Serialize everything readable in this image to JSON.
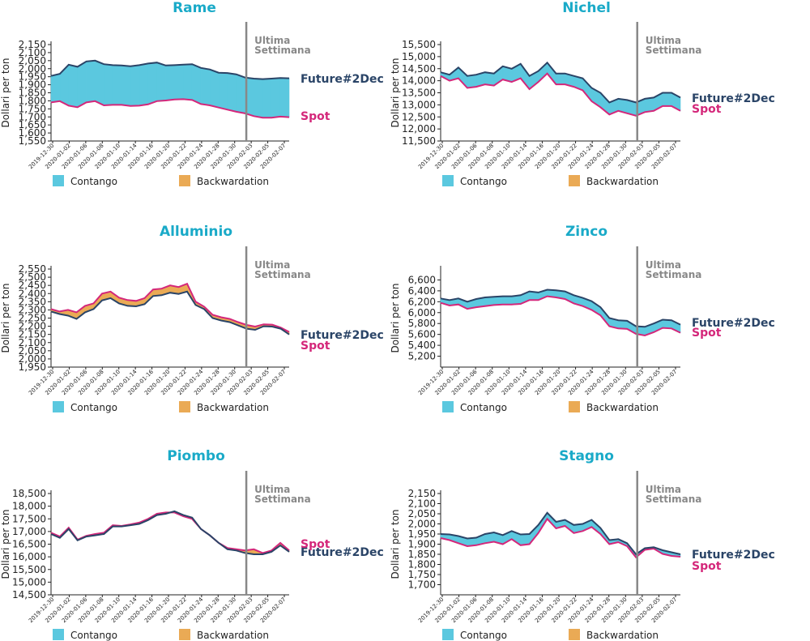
{
  "colors": {
    "contango": "#5bc8df",
    "backwardation": "#eaaa55",
    "future_line": "#2a4467",
    "spot_line": "#d4277a",
    "title": "#1aaac8",
    "week_marker": "#888888"
  },
  "shared": {
    "ylabel": "Dollari per ton",
    "week_marker_label": [
      "Ultima",
      "Settimana"
    ],
    "future_label": "Future#2Dec",
    "spot_label": "Spot",
    "legend": [
      {
        "key": "contango",
        "label": "Contango"
      },
      {
        "key": "backwardation",
        "label": "Backwardation"
      }
    ],
    "x_ticks": [
      "2019-12-30",
      "2020-01-02",
      "2020-01-06",
      "2020-01-08",
      "2020-01-10",
      "2020-01-14",
      "2020-01-16",
      "2020-01-20",
      "2020-01-22",
      "2020-01-24",
      "2020-01-28",
      "2020-01-30",
      "2020-02-03",
      "2020-02-05",
      "2020-02-07"
    ],
    "week_marker_at": "2020-01-31"
  },
  "chart_data": [
    {
      "type": "area",
      "title": "Rame",
      "ylabel": "Dollari per ton",
      "ylim": [
        1550,
        2150
      ],
      "yticks": [
        1550,
        1600,
        1650,
        1700,
        1750,
        1800,
        1850,
        1900,
        1950,
        2000,
        2050,
        2100,
        2150
      ],
      "future": [
        1955,
        1968,
        2025,
        2012,
        2045,
        2050,
        2028,
        2022,
        2020,
        2015,
        2022,
        2032,
        2038,
        2020,
        2022,
        2025,
        2028,
        2005,
        1995,
        1975,
        1973,
        1965,
        1945,
        1938,
        1935,
        1938,
        1942,
        1940
      ],
      "spot": [
        1790,
        1798,
        1770,
        1760,
        1790,
        1798,
        1772,
        1775,
        1775,
        1768,
        1770,
        1778,
        1798,
        1802,
        1808,
        1810,
        1805,
        1780,
        1772,
        1758,
        1745,
        1732,
        1722,
        1705,
        1695,
        1695,
        1702,
        1698
      ]
    },
    {
      "type": "area",
      "title": "Nichel",
      "ylabel": "Dollari per ton",
      "ylim": [
        11500,
        15500
      ],
      "yticks": [
        11500,
        12000,
        12500,
        13000,
        13500,
        14000,
        14500,
        15000,
        15500
      ],
      "future": [
        14350,
        14250,
        14550,
        14200,
        14250,
        14350,
        14300,
        14600,
        14500,
        14700,
        14200,
        14400,
        14750,
        14300,
        14300,
        14200,
        14100,
        13700,
        13500,
        13100,
        13250,
        13200,
        13100,
        13250,
        13300,
        13500,
        13500,
        13300
      ],
      "spot": [
        14200,
        14000,
        14100,
        13700,
        13750,
        13850,
        13800,
        14050,
        13950,
        14100,
        13650,
        13950,
        14300,
        13850,
        13850,
        13750,
        13600,
        13150,
        12900,
        12600,
        12750,
        12650,
        12550,
        12700,
        12750,
        12950,
        12950,
        12750
      ]
    },
    {
      "type": "area",
      "title": "Alluminio",
      "ylabel": "Dollari per ton",
      "ylim": [
        1950,
        2550
      ],
      "yticks": [
        1950,
        2000,
        2050,
        2100,
        2150,
        2200,
        2250,
        2300,
        2350,
        2400,
        2450,
        2500,
        2550
      ],
      "future": [
        2290,
        2275,
        2265,
        2245,
        2285,
        2305,
        2358,
        2372,
        2340,
        2325,
        2322,
        2335,
        2385,
        2390,
        2405,
        2398,
        2412,
        2330,
        2305,
        2250,
        2235,
        2225,
        2205,
        2185,
        2178,
        2200,
        2198,
        2185,
        2150
      ],
      "spot": [
        2305,
        2290,
        2300,
        2285,
        2325,
        2340,
        2400,
        2412,
        2375,
        2360,
        2355,
        2372,
        2425,
        2430,
        2450,
        2440,
        2460,
        2350,
        2320,
        2270,
        2255,
        2245,
        2225,
        2208,
        2198,
        2212,
        2210,
        2192,
        2165
      ]
    },
    {
      "type": "area",
      "title": "Zinco",
      "ylabel": "Dollari per ton",
      "ylim": [
        5000,
        6800
      ],
      "yticks": [
        5200,
        5400,
        5600,
        5800,
        6000,
        6200,
        6400,
        6600
      ],
      "future": [
        6260,
        6230,
        6260,
        6200,
        6250,
        6280,
        6290,
        6300,
        6300,
        6320,
        6390,
        6370,
        6420,
        6410,
        6390,
        6320,
        6270,
        6210,
        6100,
        5900,
        5860,
        5850,
        5750,
        5740,
        5800,
        5870,
        5860,
        5780
      ],
      "spot": [
        6180,
        6130,
        6150,
        6070,
        6100,
        6120,
        6140,
        6150,
        6150,
        6160,
        6230,
        6230,
        6300,
        6280,
        6250,
        6170,
        6120,
        6050,
        5950,
        5750,
        5710,
        5700,
        5610,
        5580,
        5640,
        5720,
        5710,
        5630
      ]
    },
    {
      "type": "area",
      "title": "Piombo",
      "ylabel": "Dollari per ton",
      "ylim": [
        14500,
        18500
      ],
      "yticks": [
        14500,
        15000,
        15500,
        16000,
        16500,
        17000,
        17500,
        18000,
        18500
      ],
      "future": [
        16900,
        16750,
        17100,
        16650,
        16800,
        16850,
        16900,
        17200,
        17200,
        17250,
        17300,
        17450,
        17650,
        17700,
        17800,
        17650,
        17550,
        17100,
        16850,
        16550,
        16300,
        16250,
        16150,
        16100,
        16100,
        16200,
        16450,
        16200
      ],
      "spot": [
        16950,
        16800,
        17150,
        16680,
        16830,
        16900,
        16950,
        17250,
        17220,
        17280,
        17350,
        17500,
        17700,
        17750,
        17750,
        17600,
        17500,
        17100,
        16850,
        16550,
        16350,
        16300,
        16250,
        16300,
        16150,
        16250,
        16550,
        16250
      ]
    },
    {
      "type": "area",
      "title": "Stagno",
      "ylabel": "Dollari per ton",
      "ylim": [
        1650,
        2150
      ],
      "yticks": [
        1700,
        1750,
        1800,
        1850,
        1900,
        1950,
        2000,
        2050,
        2100,
        2150
      ],
      "future": [
        1950,
        1948,
        1940,
        1928,
        1932,
        1950,
        1958,
        1945,
        1965,
        1948,
        1950,
        1995,
        2055,
        2010,
        2020,
        1995,
        2000,
        2020,
        1980,
        1920,
        1925,
        1905,
        1850,
        1880,
        1885,
        1870,
        1860,
        1850
      ],
      "spot": [
        1930,
        1920,
        1905,
        1890,
        1895,
        1905,
        1912,
        1900,
        1925,
        1895,
        1900,
        1955,
        2025,
        1978,
        1990,
        1955,
        1965,
        1985,
        1950,
        1900,
        1910,
        1890,
        1835,
        1872,
        1878,
        1852,
        1842,
        1838
      ]
    }
  ]
}
